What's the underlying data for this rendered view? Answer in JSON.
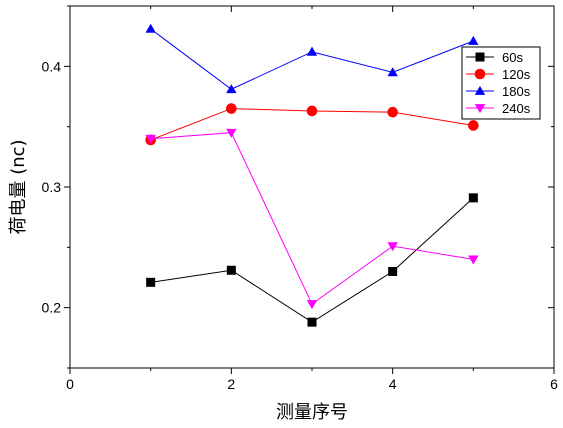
{
  "chart_data": {
    "type": "line",
    "title": "",
    "xlabel": "测量序号",
    "ylabel": "荷电量 (nc)",
    "xlim": [
      0,
      6
    ],
    "ylim": [
      0.15,
      0.45
    ],
    "x_ticks": [
      0,
      2,
      4,
      6
    ],
    "y_ticks": [
      0.2,
      0.3,
      0.4
    ],
    "x_tick_labels": [
      "0",
      "2",
      "4",
      "6"
    ],
    "y_tick_labels": [
      "0.2",
      "0.3",
      "0.4"
    ],
    "grid": false,
    "legend_position": "top-right",
    "series": [
      {
        "name": "60s",
        "color": "#000000",
        "marker": "square",
        "x": [
          1,
          2,
          3,
          4,
          5
        ],
        "values": [
          0.221,
          0.231,
          0.188,
          0.23,
          0.291
        ]
      },
      {
        "name": "120s",
        "color": "#ff0000",
        "marker": "circle",
        "x": [
          1,
          2,
          3,
          4,
          5
        ],
        "values": [
          0.339,
          0.365,
          0.363,
          0.362,
          0.351
        ]
      },
      {
        "name": "180s",
        "color": "#0000ff",
        "marker": "triangle-up",
        "x": [
          1,
          2,
          3,
          4,
          5
        ],
        "values": [
          0.431,
          0.381,
          0.412,
          0.395,
          0.421
        ]
      },
      {
        "name": "240s",
        "color": "#ff00ff",
        "marker": "triangle-down",
        "x": [
          1,
          2,
          3,
          4,
          5
        ],
        "values": [
          0.34,
          0.345,
          0.203,
          0.251,
          0.24
        ]
      }
    ]
  }
}
